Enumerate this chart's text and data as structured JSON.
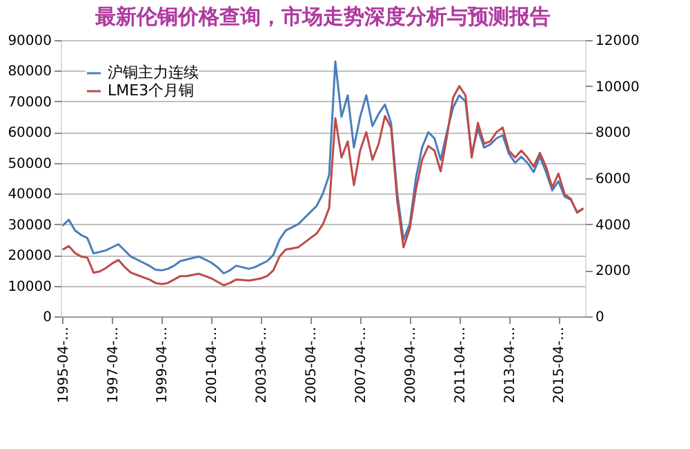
{
  "chart_data": {
    "type": "line",
    "title": "最新伦铜价格查询，市场走势深度分析与预测报告",
    "categories": [
      "1995-04-…",
      null,
      null,
      null,
      null,
      null,
      null,
      null,
      "1997-04-…",
      null,
      null,
      null,
      null,
      null,
      null,
      null,
      "1999-04-…",
      null,
      null,
      null,
      null,
      null,
      null,
      null,
      "2001-04-…",
      null,
      null,
      null,
      null,
      null,
      null,
      null,
      "2003-04-…",
      null,
      null,
      null,
      null,
      null,
      null,
      null,
      "2005-04-…",
      null,
      null,
      null,
      null,
      null,
      null,
      null,
      "2007-04-…",
      null,
      null,
      null,
      null,
      null,
      null,
      null,
      "2009-04-…",
      null,
      null,
      null,
      null,
      null,
      null,
      null,
      "2011-04-…",
      null,
      null,
      null,
      null,
      null,
      null,
      null,
      "2013-04-…",
      null,
      null,
      null,
      null,
      null,
      null,
      null,
      "2015-04-…",
      null,
      null,
      null,
      null
    ],
    "ylim": [
      0,
      90000
    ],
    "yticks": [
      0,
      10000,
      20000,
      30000,
      40000,
      50000,
      60000,
      70000,
      80000,
      90000
    ],
    "y2lim": [
      0,
      12000
    ],
    "y2ticks": [
      0,
      2000,
      4000,
      6000,
      8000,
      10000,
      12000
    ],
    "grid": "y",
    "legend": "top left",
    "series": [
      {
        "name": "沪铜主力连续",
        "color": "#4a7ebb",
        "values": [
          29500,
          31500,
          28000,
          26500,
          25500,
          20500,
          21000,
          21500,
          22500,
          23500,
          21500,
          19500,
          18500,
          17500,
          16500,
          15200,
          15000,
          15500,
          16500,
          18000,
          18500,
          19000,
          19500,
          18500,
          17500,
          16000,
          14000,
          15000,
          16500,
          16000,
          15500,
          16000,
          17000,
          18000,
          20000,
          25000,
          28000,
          29000,
          30000,
          32000,
          34000,
          36000,
          40000,
          46000,
          83000,
          65000,
          72000,
          55000,
          65000,
          72000,
          62000,
          66000,
          69000,
          63000,
          40000,
          25000,
          30000,
          45000,
          55000,
          60000,
          58000,
          51000,
          60000,
          68000,
          72000,
          70000,
          53000,
          61000,
          55000,
          56000,
          58000,
          59000,
          53000,
          50000,
          52000,
          50000,
          47000,
          52000,
          47000,
          41000,
          44000,
          39000,
          38000,
          34000,
          35000
        ]
      },
      {
        "name": "LME3个月铜",
        "color": "#be4b48",
        "axis": "y2",
        "values": [
          2900,
          3050,
          2750,
          2600,
          2550,
          1900,
          1950,
          2100,
          2300,
          2450,
          2150,
          1900,
          1800,
          1700,
          1600,
          1450,
          1400,
          1450,
          1600,
          1750,
          1750,
          1800,
          1850,
          1750,
          1650,
          1500,
          1350,
          1450,
          1600,
          1580,
          1550,
          1600,
          1650,
          1750,
          2000,
          2600,
          2900,
          2950,
          3000,
          3200,
          3400,
          3600,
          4000,
          4700,
          8600,
          6900,
          7600,
          5700,
          7200,
          8000,
          6800,
          7500,
          8700,
          8200,
          5000,
          3000,
          3800,
          5500,
          6800,
          7400,
          7200,
          6300,
          7800,
          9500,
          10000,
          9600,
          6900,
          8400,
          7500,
          7600,
          8000,
          8200,
          7200,
          6900,
          7200,
          6900,
          6500,
          7100,
          6500,
          5600,
          6200,
          5300,
          5100,
          4500,
          4700
        ]
      }
    ]
  }
}
